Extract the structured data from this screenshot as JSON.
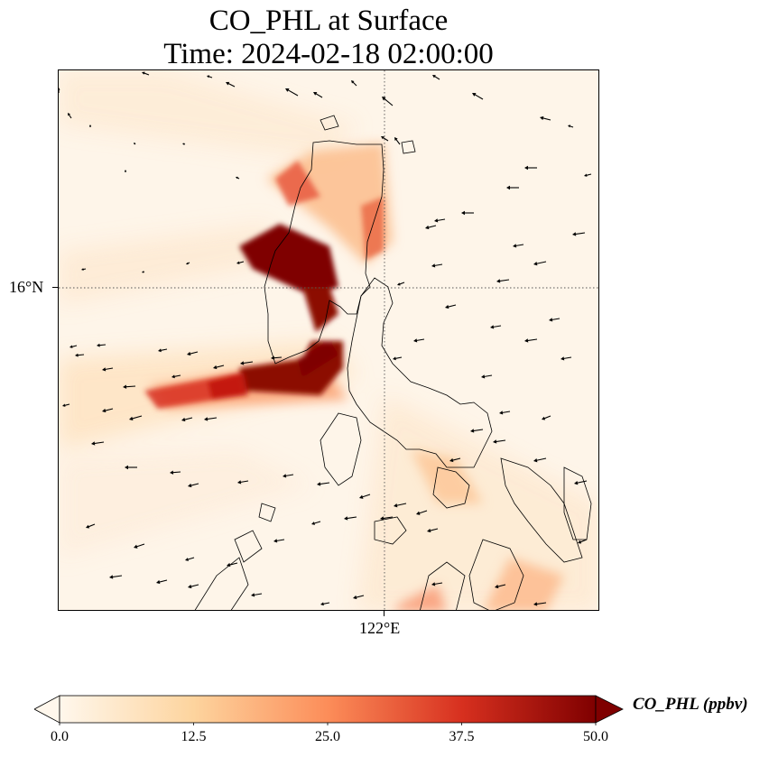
{
  "title": {
    "line1": "CO_PHL at Surface",
    "line2": "Time: 2024-02-18 02:00:00"
  },
  "axes": {
    "lat_tick": "16°N",
    "lon_tick": "122°E",
    "gridlines": "dotted"
  },
  "colorbar": {
    "label": "CO_PHL (ppbv)",
    "colormap": "OrRd",
    "ticks": [
      "0.0",
      "12.5",
      "25.0",
      "37.5",
      "50.0"
    ],
    "min": 0,
    "max": 50,
    "extend": "both",
    "colors": [
      "#fff7ec",
      "#fdd49e",
      "#fc8d59",
      "#d7301f",
      "#7f0000"
    ]
  },
  "field": {
    "variable": "CO_PHL",
    "background_color": "#fef5e9",
    "plume_peak_color": "#7f0000"
  },
  "wind_vectors": {
    "prevailing_direction": "westward",
    "color": "#000000"
  }
}
